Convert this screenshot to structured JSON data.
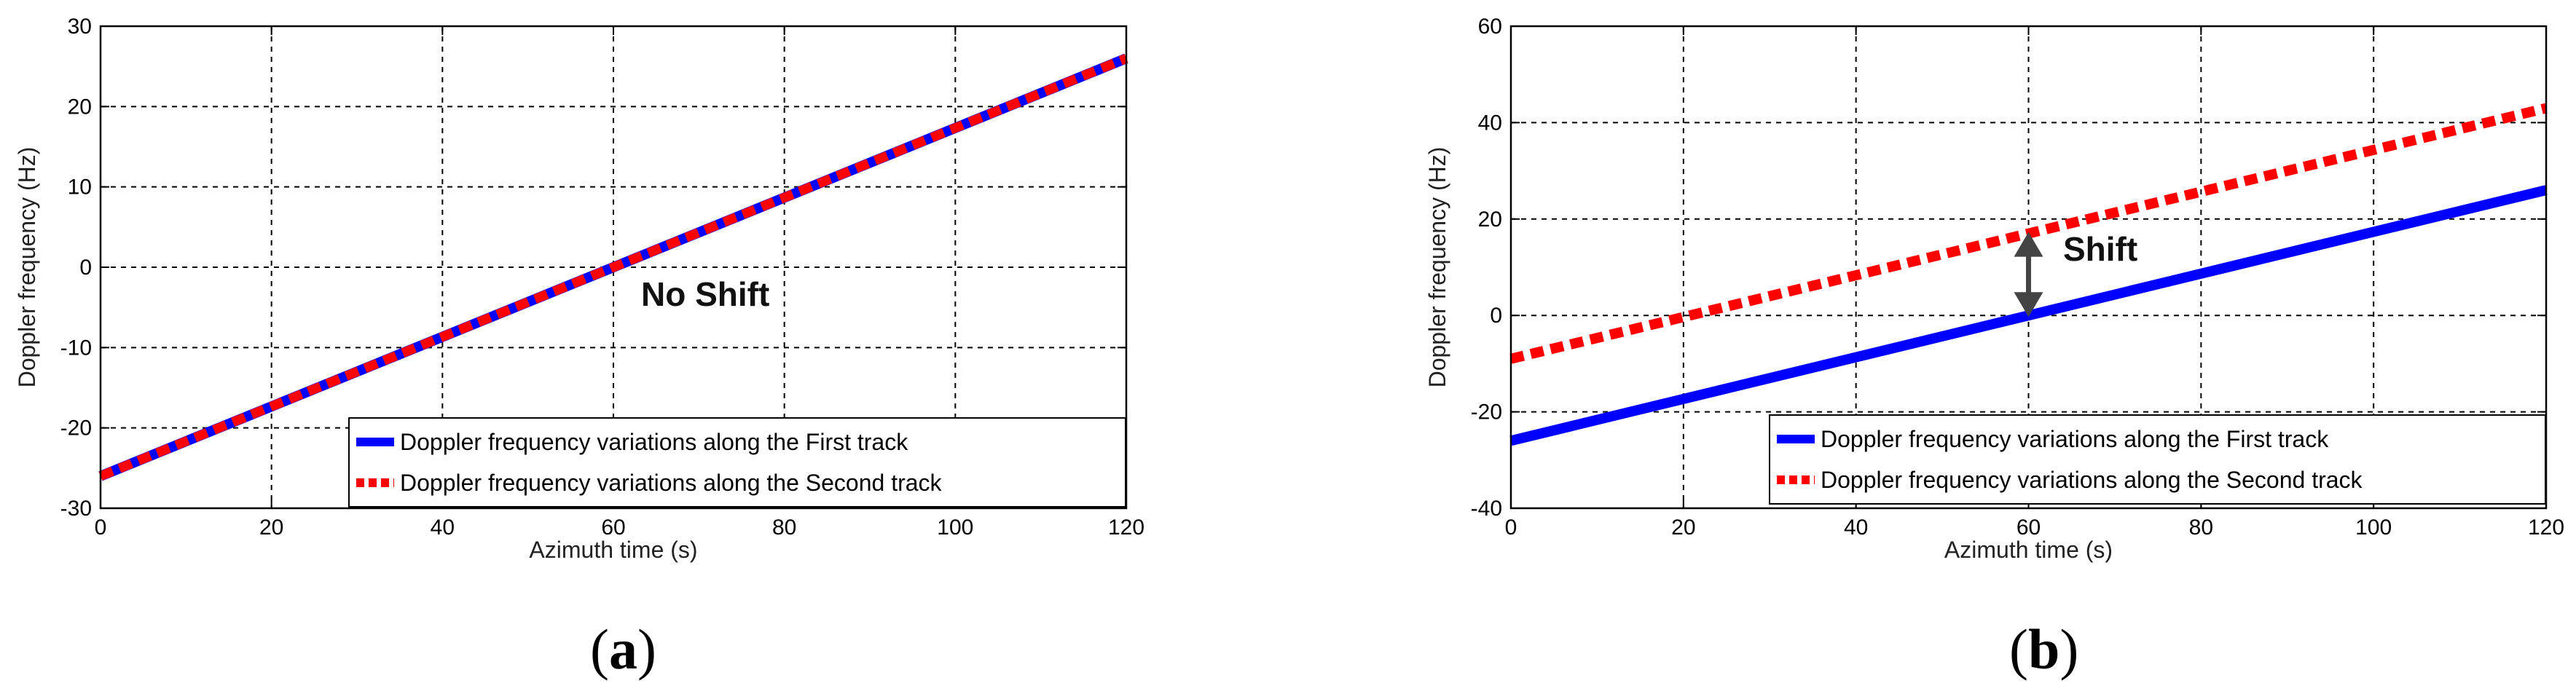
{
  "chart_data": [
    {
      "type": "line",
      "panel_label": "(a)",
      "xlabel": "Azimuth time (s)",
      "ylabel": "Doppler frequency (Hz)",
      "xlim": [
        0,
        120
      ],
      "ylim": [
        -30,
        30
      ],
      "xticks": [
        0,
        20,
        40,
        60,
        80,
        100,
        120
      ],
      "yticks": [
        -30,
        -20,
        -10,
        0,
        10,
        20,
        30
      ],
      "grid": true,
      "legend_position": "bottom-right",
      "annotation": "No Shift",
      "series": [
        {
          "name": "Doppler frequency variations along the First track",
          "x": [
            0,
            120
          ],
          "values": [
            -26,
            26
          ],
          "color": "#0000ff",
          "style": "solid"
        },
        {
          "name": "Doppler frequency variations along the Second track",
          "x": [
            0,
            120
          ],
          "values": [
            -26,
            26
          ],
          "color": "#ff0000",
          "style": "dashed"
        }
      ]
    },
    {
      "type": "line",
      "panel_label": "(b)",
      "xlabel": "Azimuth time (s)",
      "ylabel": "Doppler frequency (Hz)",
      "xlim": [
        0,
        120
      ],
      "ylim": [
        -40,
        60
      ],
      "xticks": [
        0,
        20,
        40,
        60,
        80,
        100,
        120
      ],
      "yticks": [
        -40,
        -20,
        0,
        20,
        40,
        60
      ],
      "grid": true,
      "legend_position": "bottom-right",
      "annotation": "Shift",
      "series": [
        {
          "name": "Doppler frequency variations along the First track",
          "x": [
            0,
            120
          ],
          "values": [
            -26,
            26
          ],
          "color": "#0000ff",
          "style": "solid"
        },
        {
          "name": "Doppler frequency variations along the Second track",
          "x": [
            0,
            120
          ],
          "values": [
            -9,
            43
          ],
          "color": "#ff0000",
          "style": "dashed"
        }
      ]
    }
  ]
}
